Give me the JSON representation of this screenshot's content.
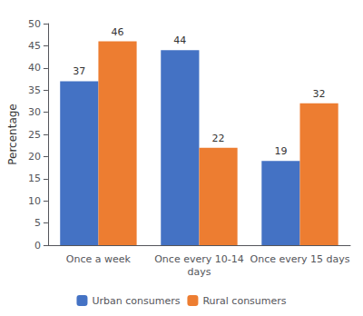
{
  "chart_data": {
    "type": "bar",
    "categories": [
      "Once a week",
      "Once every 10-14\ndays",
      "Once every 15 days"
    ],
    "series": [
      {
        "name": "Urban consumers",
        "color": "#4472C4",
        "values": [
          37,
          44,
          19
        ]
      },
      {
        "name": "Rural consumers",
        "color": "#ED7D31",
        "values": [
          46,
          22,
          32
        ]
      }
    ],
    "ylabel": "Percentage",
    "ylim": [
      0,
      50
    ],
    "yticks": [
      0,
      5,
      10,
      15,
      20,
      25,
      30,
      35,
      40,
      45,
      50
    ],
    "data_labels": true,
    "grid": false,
    "legend": "bottom"
  }
}
